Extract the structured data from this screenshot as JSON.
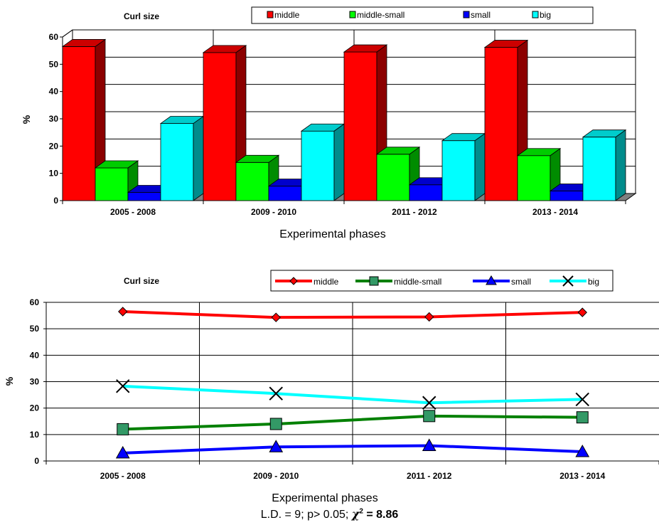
{
  "chart_data": [
    {
      "type": "bar",
      "title": "Curl size",
      "xlabel": "Experimental phases",
      "ylabel": "%",
      "ylim": [
        0,
        60
      ],
      "yticks": [
        "0",
        "10",
        "20",
        "30",
        "40",
        "50",
        "60"
      ],
      "categories": [
        "2005 - 2008",
        "2009 - 2010",
        "2011 - 2012",
        "2013 - 2014"
      ],
      "series": [
        {
          "name": "middle",
          "color": "#ff0000",
          "values": [
            56.5,
            54.3,
            54.5,
            56.2
          ]
        },
        {
          "name": "middle-small",
          "color": "#00ff00",
          "values": [
            12.0,
            14.0,
            17.0,
            16.5
          ]
        },
        {
          "name": "small",
          "color": "#0000ff",
          "values": [
            3.0,
            5.3,
            5.8,
            3.5
          ]
        },
        {
          "name": "big",
          "color": "#00ffff",
          "values": [
            28.3,
            25.5,
            22.0,
            23.3
          ]
        }
      ],
      "grid": true,
      "legend": "top"
    },
    {
      "type": "line",
      "title": "Curl size",
      "xlabel": "Experimental phases",
      "ylabel": "%",
      "ylim": [
        0,
        60
      ],
      "yticks": [
        "0",
        "10",
        "20",
        "30",
        "40",
        "50",
        "60"
      ],
      "categories": [
        "2005 - 2008",
        "2009 - 2010",
        "2011 - 2012",
        "2013 - 2014"
      ],
      "series": [
        {
          "name": "middle",
          "color": "#ff0000",
          "marker": "diamond",
          "values": [
            56.5,
            54.3,
            54.5,
            56.2
          ]
        },
        {
          "name": "middle-small",
          "color": "#008000",
          "marker": "square",
          "values": [
            12.0,
            14.0,
            17.0,
            16.5
          ]
        },
        {
          "name": "small",
          "color": "#0000ff",
          "marker": "triangle",
          "values": [
            3.0,
            5.3,
            5.8,
            3.5
          ]
        },
        {
          "name": "big",
          "color": "#00ffff",
          "marker": "x",
          "values": [
            28.3,
            25.5,
            22.0,
            23.3
          ]
        }
      ],
      "grid": true,
      "legend": "top"
    }
  ],
  "footer": {
    "ld": "L.D. = 9; p> 0.05; ",
    "chi": "χ",
    "sup": "2",
    "value": " = 8.86"
  }
}
